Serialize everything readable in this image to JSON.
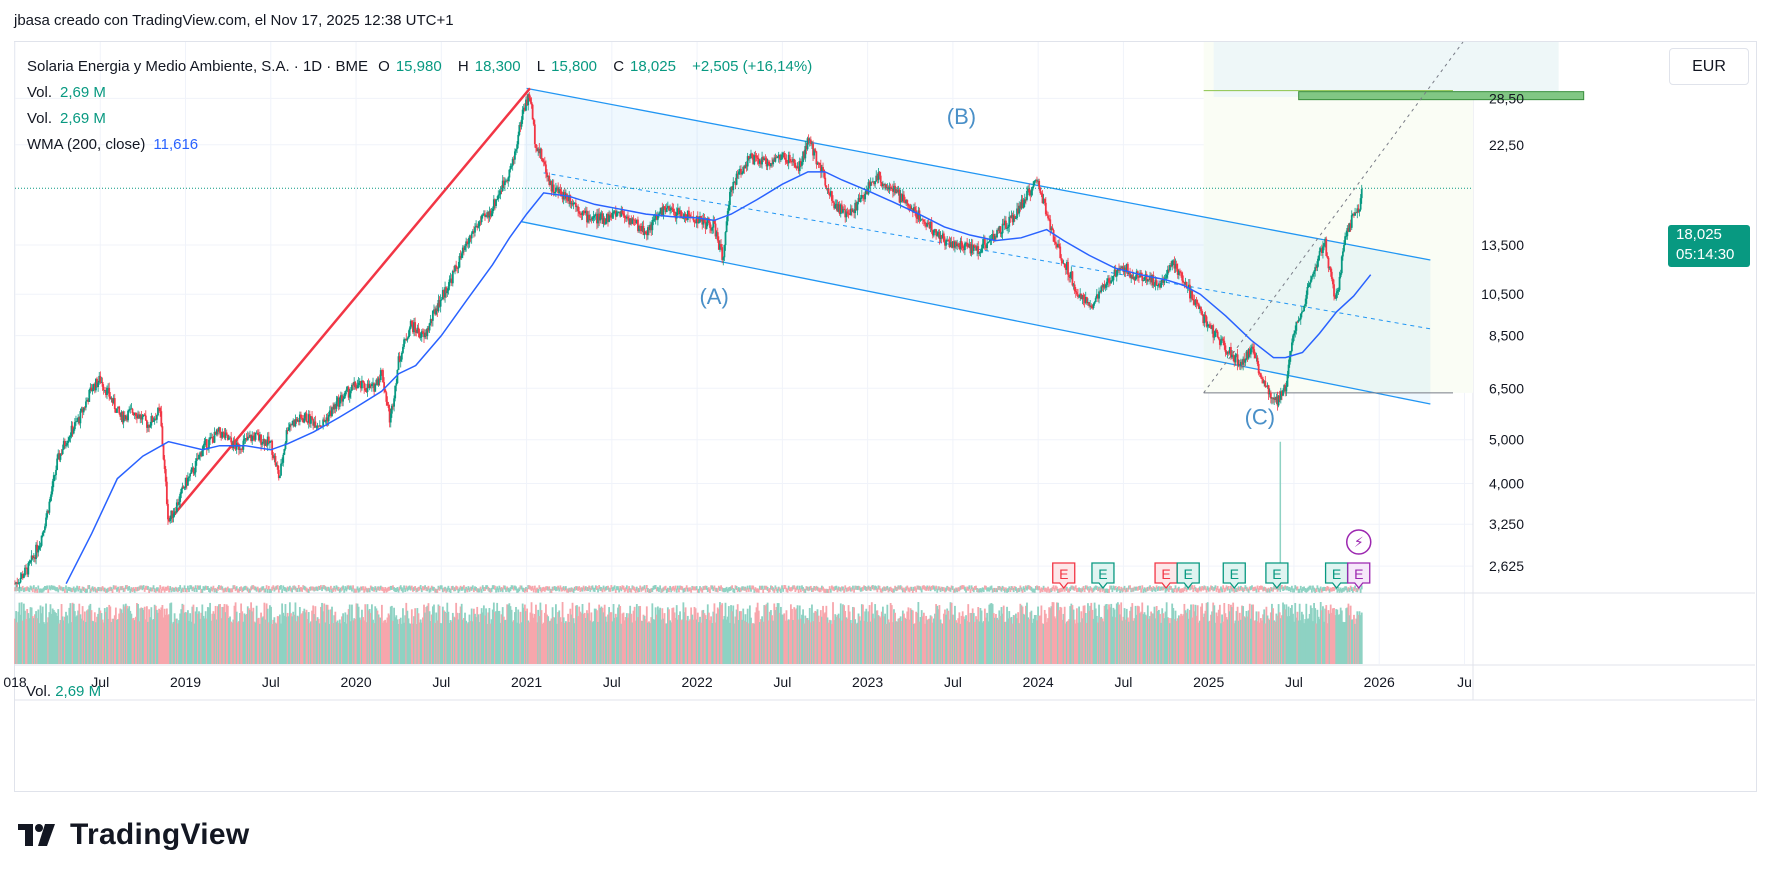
{
  "caption": "jbasa creado con TradingView.com, el Nov 17, 2025 12:38 UTC+1",
  "legend": {
    "symbol": "Solaria Energia y Medio Ambiente, S.A. · 1D · BME",
    "open_label": "O",
    "open": "15,980",
    "high_label": "H",
    "high": "18,300",
    "low_label": "L",
    "low": "15,800",
    "close_label": "C",
    "close": "18,025",
    "change": "+2,505 (+16,14%)",
    "vol1_label": "Vol.",
    "vol1": "2,69 M",
    "vol2_label": "Vol.",
    "vol2": "2,69 M",
    "wma_label": "WMA (200, close)",
    "wma": "11,616"
  },
  "currency": "EUR",
  "last_price": "18,025",
  "countdown": "05:14:30",
  "volume_pane": {
    "label": "Vol.",
    "value": "2,69 M"
  },
  "brand": "TradingView",
  "colors": {
    "up": "#089981",
    "down": "#f23645",
    "wma": "#2962ff",
    "channel": "#2196f3",
    "red_line": "#f23645",
    "target_box": "#81c784"
  },
  "chart_data": {
    "type": "candlestick",
    "title": "Solaria Energia y Medio Ambiente, S.A. · 1D · BME",
    "yscale": "log",
    "ylim": [
      2.3,
      38
    ],
    "xlim": [
      2018.0,
      2026.55
    ],
    "y_ticks": [
      "2,625",
      "3,250",
      "4,000",
      "5,000",
      "6,500",
      "8,500",
      "10,500",
      "13,500",
      "22,50",
      "28,50"
    ],
    "y_tick_values": [
      2.625,
      3.25,
      4.0,
      5.0,
      6.5,
      8.5,
      10.5,
      13.5,
      22.5,
      28.5
    ],
    "x_ticks": [
      "018",
      "Jul",
      "2019",
      "Jul",
      "2020",
      "Jul",
      "2021",
      "Jul",
      "2022",
      "Jul",
      "2023",
      "Jul",
      "2024",
      "Jul",
      "2025",
      "Jul",
      "2026",
      "Ju"
    ],
    "x_tick_values": [
      2018.0,
      2018.5,
      2019.0,
      2019.5,
      2020.0,
      2020.5,
      2021.0,
      2021.5,
      2022.0,
      2022.5,
      2023.0,
      2023.5,
      2024.0,
      2024.5,
      2025.0,
      2025.5,
      2026.0,
      2026.5
    ],
    "price_path": [
      [
        2018.0,
        2.4
      ],
      [
        2018.08,
        2.6
      ],
      [
        2018.15,
        3.0
      ],
      [
        2018.2,
        3.6
      ],
      [
        2018.25,
        4.5
      ],
      [
        2018.3,
        5.0
      ],
      [
        2018.38,
        5.6
      ],
      [
        2018.45,
        6.5
      ],
      [
        2018.5,
        6.8
      ],
      [
        2018.56,
        6.2
      ],
      [
        2018.62,
        5.6
      ],
      [
        2018.7,
        5.8
      ],
      [
        2018.78,
        5.4
      ],
      [
        2018.85,
        5.8
      ],
      [
        2018.9,
        3.3
      ],
      [
        2018.95,
        3.6
      ],
      [
        2019.0,
        4.0
      ],
      [
        2019.05,
        4.3
      ],
      [
        2019.1,
        4.8
      ],
      [
        2019.2,
        5.2
      ],
      [
        2019.3,
        4.8
      ],
      [
        2019.4,
        5.1
      ],
      [
        2019.5,
        4.9
      ],
      [
        2019.55,
        4.1
      ],
      [
        2019.6,
        5.4
      ],
      [
        2019.7,
        5.6
      ],
      [
        2019.8,
        5.4
      ],
      [
        2019.9,
        6.1
      ],
      [
        2020.0,
        6.6
      ],
      [
        2020.1,
        6.5
      ],
      [
        2020.15,
        7.1
      ],
      [
        2020.2,
        5.5
      ],
      [
        2020.25,
        7.5
      ],
      [
        2020.32,
        9.0
      ],
      [
        2020.4,
        8.4
      ],
      [
        2020.47,
        9.8
      ],
      [
        2020.55,
        11.2
      ],
      [
        2020.62,
        12.8
      ],
      [
        2020.7,
        14.8
      ],
      [
        2020.78,
        15.8
      ],
      [
        2020.85,
        18.0
      ],
      [
        2020.92,
        20.5
      ],
      [
        2020.98,
        27.0
      ],
      [
        2021.02,
        29.0
      ],
      [
        2021.05,
        23.0
      ],
      [
        2021.1,
        20.5
      ],
      [
        2021.15,
        18.0
      ],
      [
        2021.25,
        17.2
      ],
      [
        2021.35,
        15.6
      ],
      [
        2021.45,
        15.4
      ],
      [
        2021.55,
        16.0
      ],
      [
        2021.62,
        15.2
      ],
      [
        2021.7,
        14.4
      ],
      [
        2021.8,
        16.2
      ],
      [
        2021.9,
        15.8
      ],
      [
        2022.0,
        15.4
      ],
      [
        2022.1,
        14.8
      ],
      [
        2022.15,
        12.6
      ],
      [
        2022.2,
        18.2
      ],
      [
        2022.3,
        21.0
      ],
      [
        2022.4,
        20.5
      ],
      [
        2022.5,
        21.2
      ],
      [
        2022.6,
        20.0
      ],
      [
        2022.65,
        23.0
      ],
      [
        2022.72,
        20.2
      ],
      [
        2022.8,
        16.8
      ],
      [
        2022.88,
        15.6
      ],
      [
        2022.95,
        16.8
      ],
      [
        2023.05,
        19.2
      ],
      [
        2023.15,
        17.8
      ],
      [
        2023.25,
        16.4
      ],
      [
        2023.35,
        15.0
      ],
      [
        2023.45,
        13.8
      ],
      [
        2023.55,
        13.4
      ],
      [
        2023.65,
        13.2
      ],
      [
        2023.75,
        14.2
      ],
      [
        2023.85,
        15.4
      ],
      [
        2023.95,
        17.8
      ],
      [
        2024.0,
        18.6
      ],
      [
        2024.05,
        15.8
      ],
      [
        2024.1,
        13.6
      ],
      [
        2024.18,
        11.8
      ],
      [
        2024.25,
        10.2
      ],
      [
        2024.32,
        10.0
      ],
      [
        2024.4,
        11.0
      ],
      [
        2024.48,
        12.2
      ],
      [
        2024.56,
        11.6
      ],
      [
        2024.65,
        11.4
      ],
      [
        2024.72,
        11.0
      ],
      [
        2024.78,
        12.4
      ],
      [
        2024.85,
        11.4
      ],
      [
        2024.92,
        10.0
      ],
      [
        2025.0,
        8.9
      ],
      [
        2025.1,
        8.0
      ],
      [
        2025.18,
        7.4
      ],
      [
        2025.25,
        7.9
      ],
      [
        2025.3,
        7.1
      ],
      [
        2025.35,
        6.4
      ],
      [
        2025.4,
        6.1
      ],
      [
        2025.45,
        6.5
      ],
      [
        2025.5,
        8.8
      ],
      [
        2025.55,
        9.8
      ],
      [
        2025.62,
        11.8
      ],
      [
        2025.68,
        13.8
      ],
      [
        2025.72,
        11.2
      ],
      [
        2025.75,
        10.2
      ],
      [
        2025.8,
        14.0
      ],
      [
        2025.85,
        15.8
      ],
      [
        2025.88,
        16.0
      ],
      [
        2025.9,
        18.0
      ]
    ],
    "wma_path": [
      [
        2018.3,
        2.4
      ],
      [
        2018.45,
        3.1
      ],
      [
        2018.6,
        4.1
      ],
      [
        2018.75,
        4.6
      ],
      [
        2018.9,
        4.95
      ],
      [
        2019.0,
        4.85
      ],
      [
        2019.1,
        4.75
      ],
      [
        2019.2,
        4.85
      ],
      [
        2019.35,
        4.85
      ],
      [
        2019.5,
        4.75
      ],
      [
        2019.6,
        4.9
      ],
      [
        2019.75,
        5.2
      ],
      [
        2019.9,
        5.6
      ],
      [
        2020.0,
        5.9
      ],
      [
        2020.15,
        6.4
      ],
      [
        2020.25,
        7.0
      ],
      [
        2020.35,
        7.3
      ],
      [
        2020.5,
        8.5
      ],
      [
        2020.65,
        10.2
      ],
      [
        2020.8,
        12.2
      ],
      [
        2020.9,
        14.0
      ],
      [
        2021.0,
        15.8
      ],
      [
        2021.1,
        17.6
      ],
      [
        2021.25,
        17.3
      ],
      [
        2021.4,
        16.6
      ],
      [
        2021.55,
        16.2
      ],
      [
        2021.7,
        15.8
      ],
      [
        2021.85,
        15.6
      ],
      [
        2022.0,
        15.5
      ],
      [
        2022.1,
        15.3
      ],
      [
        2022.2,
        15.8
      ],
      [
        2022.35,
        17.0
      ],
      [
        2022.5,
        18.4
      ],
      [
        2022.65,
        19.6
      ],
      [
        2022.75,
        19.6
      ],
      [
        2022.85,
        18.8
      ],
      [
        2023.0,
        17.8
      ],
      [
        2023.15,
        16.8
      ],
      [
        2023.3,
        15.8
      ],
      [
        2023.45,
        14.8
      ],
      [
        2023.6,
        14.2
      ],
      [
        2023.75,
        13.8
      ],
      [
        2023.9,
        14.0
      ],
      [
        2024.05,
        14.6
      ],
      [
        2024.15,
        13.8
      ],
      [
        2024.3,
        12.8
      ],
      [
        2024.45,
        12.0
      ],
      [
        2024.6,
        11.6
      ],
      [
        2024.75,
        11.3
      ],
      [
        2024.85,
        11.0
      ],
      [
        2024.95,
        10.5
      ],
      [
        2025.1,
        9.4
      ],
      [
        2025.25,
        8.3
      ],
      [
        2025.38,
        7.6
      ],
      [
        2025.45,
        7.6
      ],
      [
        2025.55,
        7.8
      ],
      [
        2025.65,
        8.6
      ],
      [
        2025.75,
        9.6
      ],
      [
        2025.85,
        10.4
      ],
      [
        2025.95,
        11.6
      ]
    ],
    "channel_upper": [
      [
        2021.0,
        30.0
      ],
      [
        2026.3,
        12.5
      ]
    ],
    "channel_lower": [
      [
        2020.97,
        15.2
      ],
      [
        2026.3,
        6.0
      ]
    ],
    "channel_mid": [
      [
        2021.1,
        19.5
      ],
      [
        2026.3,
        8.8
      ]
    ],
    "red_line": [
      [
        2018.9,
        3.3
      ],
      [
        2021.02,
        30.0
      ]
    ],
    "target_zone": [
      29.5,
      28.5
    ],
    "target_zone_x": [
      2025.0,
      2026.5
    ],
    "horizontal_support": 6.35,
    "last_price_level": 18.025,
    "wave_labels": [
      {
        "text": "(A)",
        "x": 2022.1,
        "y": 10.0
      },
      {
        "text": "(B)",
        "x": 2023.55,
        "y": 25.0
      },
      {
        "text": "(C)",
        "x": 2025.3,
        "y": 5.4
      }
    ],
    "earnings_markers": [
      {
        "label": "E",
        "x": 2024.15,
        "kind": "miss"
      },
      {
        "label": "E",
        "x": 2024.38,
        "kind": "beat"
      },
      {
        "label": "E",
        "x": 2024.75,
        "kind": "miss"
      },
      {
        "label": "E",
        "x": 2024.88,
        "kind": "beat"
      },
      {
        "label": "E",
        "x": 2025.15,
        "kind": "beat"
      },
      {
        "label": "E",
        "x": 2025.4,
        "kind": "beat"
      },
      {
        "label": "E",
        "x": 2025.75,
        "kind": "beat"
      },
      {
        "label": "E",
        "x": 2025.88,
        "kind": "upcoming"
      }
    ],
    "dividend_marker": {
      "label": "⚡",
      "x": 2025.88
    }
  }
}
